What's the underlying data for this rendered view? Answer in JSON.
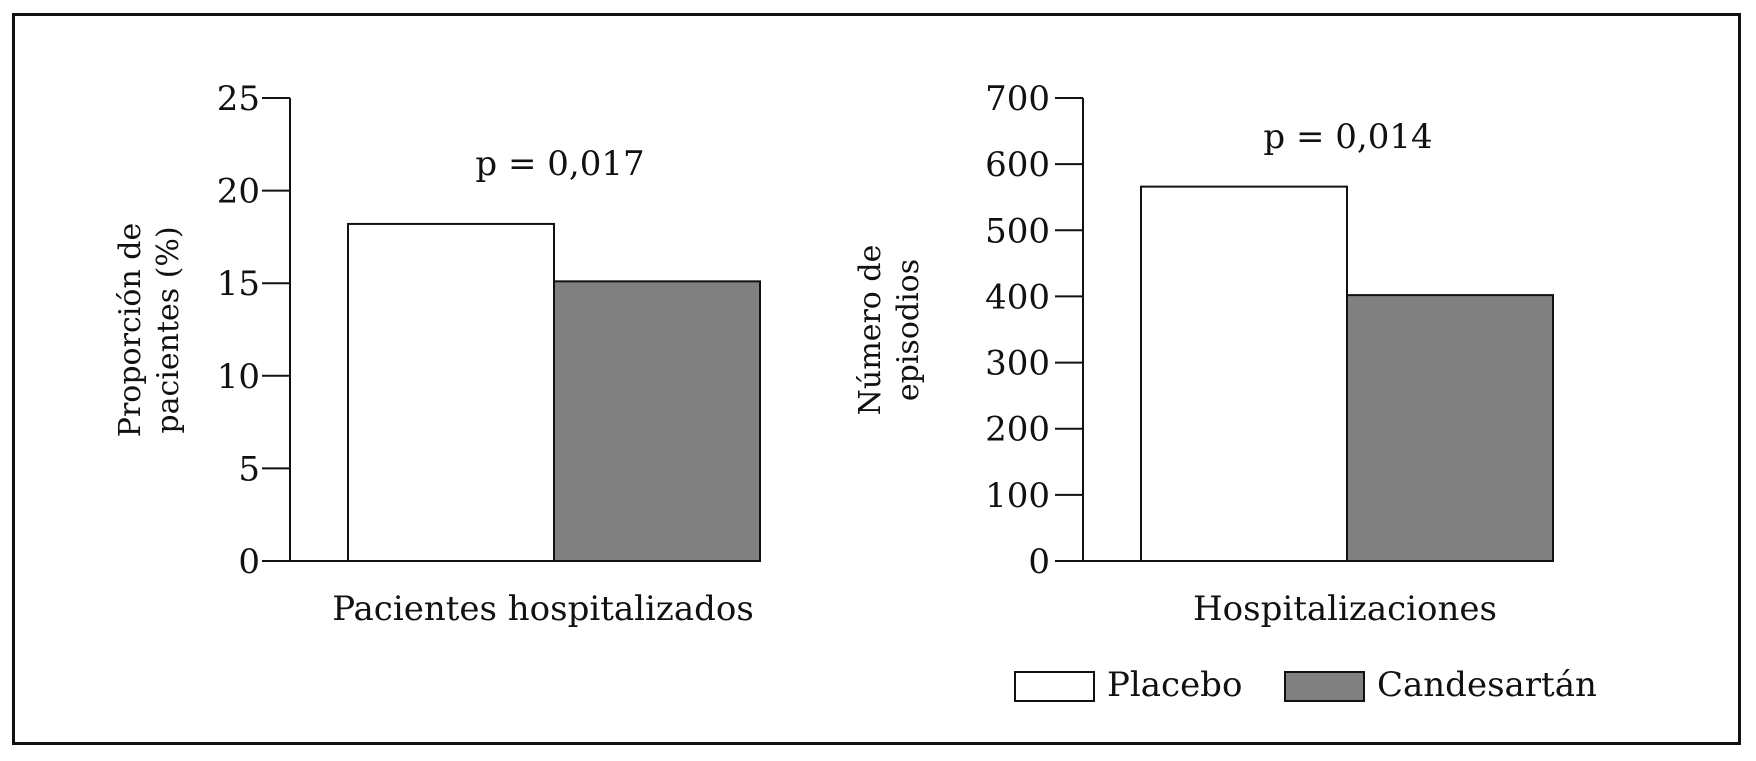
{
  "chart_data": [
    {
      "type": "bar",
      "categories": [
        "Pacientes hospitalizados"
      ],
      "xlabel": "Pacientes hospitalizados",
      "ylabel_lines": [
        "Proporción de",
        "pacientes (%)"
      ],
      "annotation": "p = 0,017",
      "ylim": [
        0,
        25
      ],
      "yticks": [
        0,
        5,
        10,
        15,
        20,
        25
      ],
      "series": [
        {
          "name": "Placebo",
          "values": [
            18.2
          ],
          "color": "#ffffff"
        },
        {
          "name": "Candesartán",
          "values": [
            15.1
          ],
          "color": "#808080"
        }
      ]
    },
    {
      "type": "bar",
      "categories": [
        "Hospitalizaciones"
      ],
      "xlabel": "Hospitalizaciones",
      "ylabel_lines": [
        "Número de",
        "episodios"
      ],
      "annotation": "p = 0,014",
      "ylim": [
        0,
        700
      ],
      "yticks": [
        0,
        100,
        200,
        300,
        400,
        500,
        600,
        700
      ],
      "series": [
        {
          "name": "Placebo",
          "values": [
            566
          ],
          "color": "#ffffff"
        },
        {
          "name": "Candesartán",
          "values": [
            402
          ],
          "color": "#808080"
        }
      ]
    }
  ],
  "legend": {
    "placement": "bottom-right",
    "items": [
      {
        "label": "Placebo",
        "color": "#ffffff"
      },
      {
        "label": "Candesartán",
        "color": "#808080"
      }
    ]
  }
}
